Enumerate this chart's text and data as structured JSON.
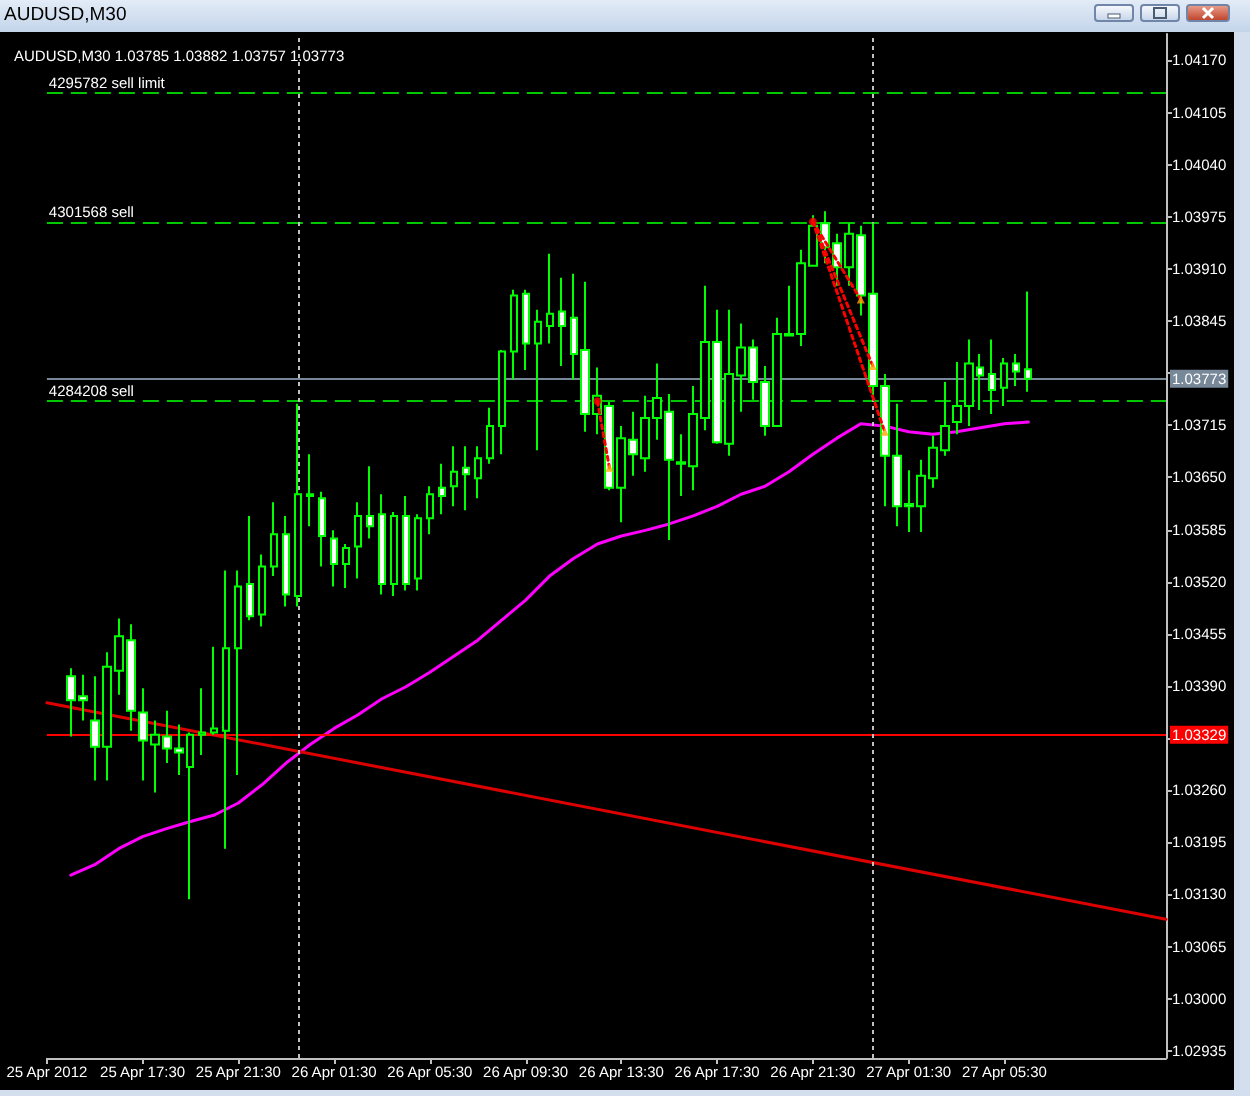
{
  "chart_data": {
    "type": "candlestick",
    "title": "AUDUSD,M30",
    "subtitle": "AUDUSD,M30 1.03785 1.03882 1.03757 1.03773",
    "x": [
      "2012-04-25T14:30",
      "2012-04-25T15:00",
      "2012-04-25T15:30",
      "2012-04-25T16:00",
      "2012-04-25T16:30",
      "2012-04-25T17:00",
      "2012-04-25T17:30",
      "2012-04-25T18:00",
      "2012-04-25T18:30",
      "2012-04-25T19:00",
      "2012-04-25T19:30",
      "2012-04-25T20:00",
      "2012-04-25T20:30",
      "2012-04-25T21:00",
      "2012-04-25T21:30",
      "2012-04-25T22:00",
      "2012-04-25T22:30",
      "2012-04-25T23:00",
      "2012-04-25T23:30",
      "2012-04-26T00:00",
      "2012-04-26T00:30",
      "2012-04-26T01:00",
      "2012-04-26T01:30",
      "2012-04-26T02:00",
      "2012-04-26T02:30",
      "2012-04-26T03:00",
      "2012-04-26T03:30",
      "2012-04-26T04:00",
      "2012-04-26T04:30",
      "2012-04-26T05:00",
      "2012-04-26T05:30",
      "2012-04-26T06:00",
      "2012-04-26T06:30",
      "2012-04-26T07:00",
      "2012-04-26T07:30",
      "2012-04-26T08:00",
      "2012-04-26T08:30",
      "2012-04-26T09:00",
      "2012-04-26T09:30",
      "2012-04-26T10:00",
      "2012-04-26T10:30",
      "2012-04-26T11:00",
      "2012-04-26T11:30",
      "2012-04-26T12:00",
      "2012-04-26T12:30",
      "2012-04-26T13:00",
      "2012-04-26T13:30",
      "2012-04-26T14:00",
      "2012-04-26T14:30",
      "2012-04-26T15:00",
      "2012-04-26T15:30",
      "2012-04-26T16:00",
      "2012-04-26T16:30",
      "2012-04-26T17:00",
      "2012-04-26T17:30",
      "2012-04-26T18:00",
      "2012-04-26T18:30",
      "2012-04-26T19:00",
      "2012-04-26T19:30",
      "2012-04-26T20:00",
      "2012-04-26T20:30",
      "2012-04-26T21:00",
      "2012-04-26T21:30",
      "2012-04-26T22:00",
      "2012-04-26T22:30",
      "2012-04-26T23:00",
      "2012-04-26T23:30",
      "2012-04-27T00:00",
      "2012-04-27T00:30",
      "2012-04-27T01:00",
      "2012-04-27T01:30",
      "2012-04-27T02:00",
      "2012-04-27T02:30",
      "2012-04-27T03:00",
      "2012-04-27T03:30",
      "2012-04-27T04:00",
      "2012-04-27T04:30",
      "2012-04-27T05:00",
      "2012-04-27T05:30",
      "2012-04-27T06:00",
      "2012-04-27T06:30"
    ],
    "ohlc": [
      [
        1.03402,
        1.03412,
        1.03327,
        1.03372
      ],
      [
        1.03377,
        1.03404,
        1.03347,
        1.03372
      ],
      [
        1.03347,
        1.03402,
        1.03272,
        1.03314
      ],
      [
        1.03314,
        1.03432,
        1.03272,
        1.03414
      ],
      [
        1.03409,
        1.03474,
        1.03379,
        1.03452
      ],
      [
        1.03447,
        1.03467,
        1.03334,
        1.03359
      ],
      [
        1.03357,
        1.03387,
        1.03272,
        1.03322
      ],
      [
        1.03317,
        1.03347,
        1.03257,
        1.03329
      ],
      [
        1.03327,
        1.03359,
        1.03294,
        1.03312
      ],
      [
        1.03312,
        1.03342,
        1.03279,
        1.03307
      ],
      [
        1.03289,
        1.03332,
        1.03124,
        1.03329
      ],
      [
        1.03329,
        1.03387,
        1.03304,
        1.03332
      ],
      [
        1.03332,
        1.03439,
        1.03329,
        1.03337
      ],
      [
        1.03334,
        1.03534,
        1.03187,
        1.03437
      ],
      [
        1.03437,
        1.03534,
        1.03279,
        1.03514
      ],
      [
        1.03517,
        1.03602,
        1.03472,
        1.03477
      ],
      [
        1.03479,
        1.03554,
        1.03464,
        1.03539
      ],
      [
        1.03539,
        1.03619,
        1.03527,
        1.03579
      ],
      [
        1.03579,
        1.03602,
        1.03489,
        1.03504
      ],
      [
        1.03502,
        1.03742,
        1.03489,
        1.03629
      ],
      [
        1.03629,
        1.03679,
        1.03589,
        1.03627
      ],
      [
        1.03624,
        1.03632,
        1.03539,
        1.03577
      ],
      [
        1.03574,
        1.03584,
        1.03514,
        1.03542
      ],
      [
        1.03542,
        1.03567,
        1.03512,
        1.03562
      ],
      [
        1.03564,
        1.03619,
        1.03524,
        1.03602
      ],
      [
        1.03602,
        1.03664,
        1.03574,
        1.03589
      ],
      [
        1.03604,
        1.03629,
        1.03504,
        1.03517
      ],
      [
        1.03517,
        1.03607,
        1.03502,
        1.03602
      ],
      [
        1.03602,
        1.03627,
        1.03509,
        1.03517
      ],
      [
        1.03524,
        1.03604,
        1.03509,
        1.03599
      ],
      [
        1.03599,
        1.03639,
        1.03579,
        1.03629
      ],
      [
        1.03637,
        1.03667,
        1.03604,
        1.03627
      ],
      [
        1.03639,
        1.03689,
        1.03614,
        1.03657
      ],
      [
        1.03662,
        1.03689,
        1.03609,
        1.03654
      ],
      [
        1.03649,
        1.03689,
        1.03624,
        1.03674
      ],
      [
        1.03674,
        1.03737,
        1.03667,
        1.03714
      ],
      [
        1.03714,
        1.03809,
        1.03679,
        1.03807
      ],
      [
        1.03807,
        1.03884,
        1.03772,
        1.03877
      ],
      [
        1.03879,
        1.03884,
        1.03784,
        1.03817
      ],
      [
        1.03817,
        1.03859,
        1.03684,
        1.03844
      ],
      [
        1.03839,
        1.03929,
        1.03817,
        1.03854
      ],
      [
        1.03857,
        1.03899,
        1.03789,
        1.03839
      ],
      [
        1.03849,
        1.03904,
        1.03772,
        1.03804
      ],
      [
        1.03809,
        1.03894,
        1.03707,
        1.03729
      ],
      [
        1.03729,
        1.03787,
        1.03704,
        1.03752
      ],
      [
        1.03739,
        1.03744,
        1.03634,
        1.03637
      ],
      [
        1.03637,
        1.03714,
        1.03594,
        1.03699
      ],
      [
        1.03697,
        1.03732,
        1.03652,
        1.03679
      ],
      [
        1.03674,
        1.03752,
        1.03657,
        1.03724
      ],
      [
        1.03724,
        1.03792,
        1.03697,
        1.03749
      ],
      [
        1.03732,
        1.03754,
        1.03572,
        1.03672
      ],
      [
        1.03667,
        1.03704,
        1.03627,
        1.03669
      ],
      [
        1.03664,
        1.03764,
        1.03634,
        1.03729
      ],
      [
        1.03724,
        1.03889,
        1.03709,
        1.03819
      ],
      [
        1.03819,
        1.03859,
        1.03692,
        1.03694
      ],
      [
        1.03692,
        1.03859,
        1.03677,
        1.03779
      ],
      [
        1.03777,
        1.03842,
        1.03732,
        1.03812
      ],
      [
        1.03812,
        1.03822,
        1.03747,
        1.03769
      ],
      [
        1.03769,
        1.03789,
        1.03702,
        1.03714
      ],
      [
        1.03714,
        1.03849,
        1.03714,
        1.03829
      ],
      [
        1.03827,
        1.03889,
        1.03827,
        1.03829
      ],
      [
        1.03829,
        1.03934,
        1.03814,
        1.03917
      ],
      [
        1.03914,
        1.03977,
        1.03914,
        1.03964
      ],
      [
        1.03967,
        1.03982,
        1.03917,
        1.03937
      ],
      [
        1.03942,
        1.03954,
        1.03889,
        1.03912
      ],
      [
        1.03912,
        1.03967,
        1.03889,
        1.03954
      ],
      [
        1.03952,
        1.03964,
        1.03852,
        1.03877
      ],
      [
        1.03879,
        1.03967,
        1.03752,
        1.03764
      ],
      [
        1.03764,
        1.03779,
        1.03614,
        1.03677
      ],
      [
        1.03677,
        1.03742,
        1.03589,
        1.03614
      ],
      [
        1.03617,
        1.03659,
        1.03582,
        1.03614
      ],
      [
        1.03614,
        1.03672,
        1.03582,
        1.03652
      ],
      [
        1.03649,
        1.03702,
        1.03637,
        1.03687
      ],
      [
        1.03684,
        1.03769,
        1.03677,
        1.03714
      ],
      [
        1.03719,
        1.03794,
        1.03704,
        1.03739
      ],
      [
        1.03739,
        1.03822,
        1.03714,
        1.03792
      ],
      [
        1.03787,
        1.03804,
        1.03734,
        1.03777
      ],
      [
        1.03779,
        1.03822,
        1.03729,
        1.03759
      ],
      [
        1.03762,
        1.03799,
        1.03739,
        1.03792
      ],
      [
        1.03792,
        1.03804,
        1.03764,
        1.03782
      ],
      [
        1.03785,
        1.03882,
        1.03757,
        1.03773
      ]
    ],
    "color": "#00ff00",
    "series": [
      {
        "type": "line",
        "color": "#ff00ff",
        "marker": "none",
        "line_style": "solid",
        "x": [
          "2012-04-25T14:30",
          "2012-04-25T15:30",
          "2012-04-25T16:30",
          "2012-04-25T17:30",
          "2012-04-25T18:30",
          "2012-04-25T19:30",
          "2012-04-25T20:30",
          "2012-04-25T21:30",
          "2012-04-25T22:30",
          "2012-04-25T23:30",
          "2012-04-26T00:30",
          "2012-04-26T01:30",
          "2012-04-26T02:30",
          "2012-04-26T03:30",
          "2012-04-26T04:30",
          "2012-04-26T05:30",
          "2012-04-26T06:30",
          "2012-04-26T07:30",
          "2012-04-26T08:30",
          "2012-04-26T09:30",
          "2012-04-26T10:30",
          "2012-04-26T11:30",
          "2012-04-26T12:30",
          "2012-04-26T13:30",
          "2012-04-26T14:30",
          "2012-04-26T15:30",
          "2012-04-26T16:30",
          "2012-04-26T17:30",
          "2012-04-26T18:30",
          "2012-04-26T19:30",
          "2012-04-26T20:30",
          "2012-04-26T21:30",
          "2012-04-26T22:30",
          "2012-04-26T23:30",
          "2012-04-27T00:30",
          "2012-04-27T01:30",
          "2012-04-27T02:30",
          "2012-04-27T03:30",
          "2012-04-27T04:30",
          "2012-04-27T05:30",
          "2012-04-27T06:30"
        ],
        "values": [
          1.03154,
          1.03167,
          1.03187,
          1.03202,
          1.03212,
          1.03221,
          1.03229,
          1.03244,
          1.03267,
          1.03294,
          1.03317,
          1.03337,
          1.03354,
          1.03374,
          1.03389,
          1.03407,
          1.03427,
          1.03447,
          1.03472,
          1.03497,
          1.03527,
          1.03549,
          1.03567,
          1.03577,
          1.03584,
          1.03592,
          1.03602,
          1.03614,
          1.03629,
          1.03639,
          1.03657,
          1.03679,
          1.03699,
          1.03717,
          1.03714,
          1.03707,
          1.03704,
          1.03707,
          1.03712,
          1.03717,
          1.03719
        ]
      },
      {
        "type": "line",
        "color": "#dd0000",
        "marker": "none",
        "line_style": "solid",
        "x": [
          "2012-04-25T13:30",
          "2012-04-27T12:15"
        ],
        "values": [
          1.03369,
          1.03099
        ]
      },
      {
        "type": "line",
        "color": "#ff0000",
        "marker": "none",
        "line_style": "dotted",
        "x": [
          "2012-04-26T12:30",
          "2012-04-26T13:00"
        ],
        "values": [
          1.03745,
          1.03662
        ]
      },
      {
        "type": "line",
        "color": "#ff0000",
        "marker": "none",
        "line_style": "dotted",
        "x": [
          "2012-04-26T21:30",
          "2012-04-26T23:30"
        ],
        "values": [
          1.03969,
          1.03872
        ]
      },
      {
        "type": "line",
        "color": "#ff0000",
        "marker": "none",
        "line_style": "dotted",
        "x": [
          "2012-04-26T21:30",
          "2012-04-27T00:00"
        ],
        "values": [
          1.03969,
          1.03789
        ]
      },
      {
        "type": "line",
        "color": "#ff0000",
        "marker": "none",
        "line_style": "dotted",
        "x": [
          "2012-04-26T21:30",
          "2012-04-27T00:30"
        ],
        "values": [
          1.03969,
          1.03707
        ]
      },
      {
        "type": "scatter",
        "color": "#ffa500",
        "marker": "triangle",
        "x": [
          "2012-04-26T13:00",
          "2012-04-26T23:30",
          "2012-04-27T00:00",
          "2012-04-27T00:30"
        ],
        "values": [
          1.03662,
          1.03872,
          1.03789,
          1.03707
        ]
      },
      {
        "type": "scatter",
        "color": "#ff0000",
        "marker": "circle",
        "x": [
          "2012-04-26T12:30",
          "2012-04-26T21:30"
        ],
        "values": [
          1.03745,
          1.03969
        ]
      }
    ],
    "xlim": [
      "2012-04-25T13:30",
      "2012-04-27T12:15"
    ],
    "xticks": [
      {
        "value": "2012-04-25T13:30",
        "label": "25 Apr 2012"
      },
      {
        "value": "2012-04-25T17:30",
        "label": "25 Apr 17:30"
      },
      {
        "value": "2012-04-25T21:30",
        "label": "25 Apr 21:30"
      },
      {
        "value": "2012-04-26T01:30",
        "label": "26 Apr 01:30"
      },
      {
        "value": "2012-04-26T05:30",
        "label": "26 Apr 05:30"
      },
      {
        "value": "2012-04-26T09:30",
        "label": "26 Apr 09:30"
      },
      {
        "value": "2012-04-26T13:30",
        "label": "26 Apr 13:30"
      },
      {
        "value": "2012-04-26T17:30",
        "label": "26 Apr 17:30"
      },
      {
        "value": "2012-04-26T21:30",
        "label": "26 Apr 21:30"
      },
      {
        "value": "2012-04-27T01:30",
        "label": "27 Apr 01:30"
      },
      {
        "value": "2012-04-27T05:30",
        "label": "27 Apr 05:30"
      }
    ],
    "ylim": [
      1.02926,
      1.04203
    ],
    "yticks": [
      {
        "value": 1.02935,
        "label": "1.02935"
      },
      {
        "value": 1.03,
        "label": "1.03000"
      },
      {
        "value": 1.03065,
        "label": "1.03065"
      },
      {
        "value": 1.0313,
        "label": "1.03130"
      },
      {
        "value": 1.03195,
        "label": "1.03195"
      },
      {
        "value": 1.0326,
        "label": "1.03260"
      },
      {
        "value": 1.03325,
        "label": null
      },
      {
        "value": 1.0339,
        "label": "1.03390"
      },
      {
        "value": 1.03455,
        "label": "1.03455"
      },
      {
        "value": 1.0352,
        "label": "1.03520"
      },
      {
        "value": 1.03585,
        "label": "1.03585"
      },
      {
        "value": 1.0365,
        "label": "1.03650"
      },
      {
        "value": 1.03715,
        "label": "1.03715"
      },
      {
        "value": 1.0378,
        "label": null
      },
      {
        "value": 1.03845,
        "label": "1.03845"
      },
      {
        "value": 1.0391,
        "label": "1.03910"
      },
      {
        "value": 1.03975,
        "label": "1.03975"
      },
      {
        "value": 1.0404,
        "label": "1.04040"
      },
      {
        "value": 1.04105,
        "label": "1.04105"
      },
      {
        "value": 1.0417,
        "label": "1.04170"
      }
    ],
    "ref_lines": [
      {
        "axis": "y",
        "value": 1.04129,
        "label": "4295782 sell limit",
        "color": "#00c800",
        "line_style": "dashed"
      },
      {
        "axis": "y",
        "value": 1.03969,
        "label": "4301568 sell",
        "color": "#00c800",
        "line_style": "dashed"
      },
      {
        "axis": "y",
        "value": 1.03745,
        "label": "4284208 sell",
        "color": "#00c800",
        "line_style": "dashed"
      },
      {
        "axis": "y",
        "value": 1.03773,
        "label": "1.03773",
        "color": "#778899",
        "line_style": "solid"
      },
      {
        "axis": "y",
        "value": 1.03329,
        "label": "1.03329",
        "color": "#ff0000",
        "line_style": "solid"
      },
      {
        "axis": "x",
        "value": "2012-04-26T00:00",
        "label": null,
        "color": "#c0c0c0",
        "line_style": "dotted"
      },
      {
        "axis": "x",
        "value": "2012-04-27T00:00",
        "label": null,
        "color": "#c0c0c0",
        "line_style": "dotted"
      }
    ],
    "grid": false
  }
}
